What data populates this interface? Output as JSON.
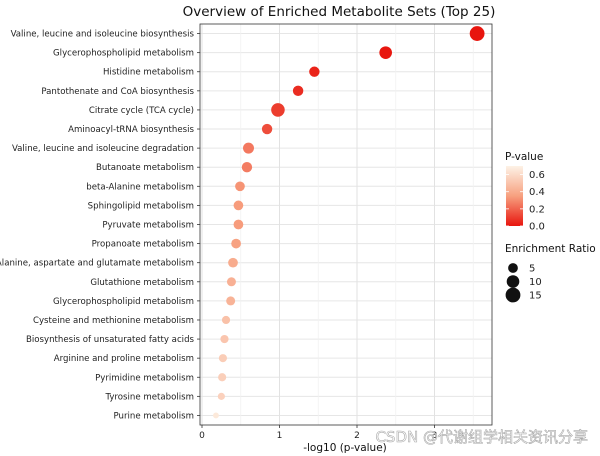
{
  "chart_data": {
    "type": "scatter",
    "title": "Overview of Enriched Metabolite Sets (Top 25)",
    "xlabel": "-log10 (p-value)",
    "ylabel": "",
    "xlim": [
      0,
      3.6
    ],
    "x_ticks": [
      "0",
      "1",
      "2",
      "3"
    ],
    "grid": true,
    "categories": [
      "Valine, leucine and isoleucine biosynthesis",
      "Glycerophospholipid metabolism",
      "Histidine metabolism",
      "Pantothenate and CoA biosynthesis",
      "Citrate cycle (TCA cycle)",
      "Aminoacyl-tRNA biosynthesis",
      "Valine, leucine and isoleucine degradation",
      "Butanoate metabolism",
      "beta-Alanine metabolism",
      "Sphingolipid metabolism",
      "Pyruvate metabolism",
      "Propanoate metabolism",
      "Alanine, aspartate and glutamate metabolism",
      "Glutathione metabolism",
      "Glycerophospholipid metabolism",
      "Cysteine and methionine metabolism",
      "Biosynthesis of unsaturated fatty acids",
      "Arginine and proline metabolism",
      "Pyrimidine metabolism",
      "Tyrosine metabolism",
      "Purine metabolism"
    ],
    "points": [
      {
        "x": 3.55,
        "p": 0.0003,
        "ratio": 15
      },
      {
        "x": 2.37,
        "p": 0.004,
        "ratio": 10
      },
      {
        "x": 1.45,
        "p": 0.035,
        "ratio": 6
      },
      {
        "x": 1.24,
        "p": 0.058,
        "ratio": 6
      },
      {
        "x": 0.98,
        "p": 0.1,
        "ratio": 12
      },
      {
        "x": 0.84,
        "p": 0.14,
        "ratio": 6
      },
      {
        "x": 0.6,
        "p": 0.25,
        "ratio": 7
      },
      {
        "x": 0.58,
        "p": 0.26,
        "ratio": 6
      },
      {
        "x": 0.49,
        "p": 0.32,
        "ratio": 5
      },
      {
        "x": 0.47,
        "p": 0.34,
        "ratio": 5
      },
      {
        "x": 0.47,
        "p": 0.34,
        "ratio": 5
      },
      {
        "x": 0.44,
        "p": 0.36,
        "ratio": 5
      },
      {
        "x": 0.4,
        "p": 0.4,
        "ratio": 5
      },
      {
        "x": 0.38,
        "p": 0.42,
        "ratio": 4
      },
      {
        "x": 0.37,
        "p": 0.43,
        "ratio": 4
      },
      {
        "x": 0.31,
        "p": 0.49,
        "ratio": 3
      },
      {
        "x": 0.29,
        "p": 0.51,
        "ratio": 3
      },
      {
        "x": 0.27,
        "p": 0.54,
        "ratio": 3
      },
      {
        "x": 0.26,
        "p": 0.55,
        "ratio": 3
      },
      {
        "x": 0.25,
        "p": 0.56,
        "ratio": 2
      },
      {
        "x": 0.18,
        "p": 0.66,
        "ratio": 1
      }
    ],
    "color_legend": {
      "title": "P-value",
      "ticks": [
        "0.6",
        "0.4",
        "0.2",
        "0.0"
      ],
      "low_color": "#e8150e",
      "high_color": "#fdf2e6"
    },
    "size_legend": {
      "title": "Enrichment Ratio",
      "labels": [
        "5",
        "10",
        "15"
      ],
      "values": [
        5,
        10,
        15
      ]
    },
    "colors": {
      "panel_background": "#ffffff",
      "grid": "#e6e6e6"
    }
  },
  "watermark": "CSDN @代谢组学相关资讯分享"
}
